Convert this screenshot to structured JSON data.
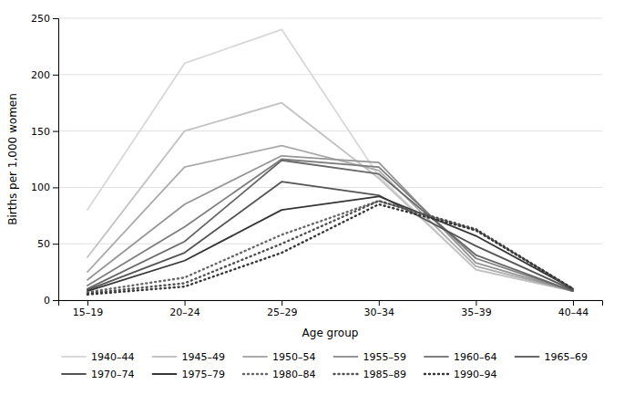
{
  "chart_data": {
    "type": "line",
    "xlabel": "Age group",
    "ylabel": "Births per 1,000 women",
    "categories": [
      "15–19",
      "20–24",
      "25–29",
      "30–34",
      "35–39",
      "40–44"
    ],
    "series": [
      {
        "name": "1940–44",
        "color": "#d8d8d8",
        "line_style": "solid",
        "values": [
          80,
          210,
          240,
          110,
          27,
          8
        ]
      },
      {
        "name": "1945–49",
        "color": "#c2c2c2",
        "line_style": "solid",
        "values": [
          38,
          150,
          175,
          108,
          27,
          8
        ]
      },
      {
        "name": "1950–54",
        "color": "#ababab",
        "line_style": "solid",
        "values": [
          25,
          118,
          137,
          115,
          30,
          8
        ]
      },
      {
        "name": "1955–59",
        "color": "#959595",
        "line_style": "solid",
        "values": [
          18,
          85,
          128,
          122,
          33,
          8
        ]
      },
      {
        "name": "1960–64",
        "color": "#7e7e7e",
        "line_style": "solid",
        "values": [
          13,
          65,
          125,
          118,
          37,
          8
        ]
      },
      {
        "name": "1965–69",
        "color": "#686868",
        "line_style": "solid",
        "values": [
          10,
          52,
          124,
          112,
          40,
          8
        ]
      },
      {
        "name": "1970–74",
        "color": "#545454",
        "line_style": "solid",
        "values": [
          9,
          42,
          105,
          93,
          48,
          9
        ]
      },
      {
        "name": "1975–79",
        "color": "#363636",
        "line_style": "solid",
        "values": [
          8,
          35,
          80,
          92,
          57,
          10
        ]
      },
      {
        "name": "1980–84",
        "color": "#686868",
        "line_style": "dotted",
        "values": [
          7,
          20,
          58,
          88,
          62,
          10
        ]
      },
      {
        "name": "1985–89",
        "color": "#505050",
        "line_style": "dotted",
        "values": [
          6,
          15,
          50,
          88,
          63,
          10
        ]
      },
      {
        "name": "1990–94",
        "color": "#363636",
        "line_style": "dotted",
        "values": [
          5,
          12,
          42,
          85,
          62,
          10
        ]
      }
    ],
    "ylim": [
      0,
      250
    ],
    "yticks": [
      0,
      50,
      100,
      150,
      200,
      250
    ],
    "grid": true,
    "legend": "bottom"
  }
}
